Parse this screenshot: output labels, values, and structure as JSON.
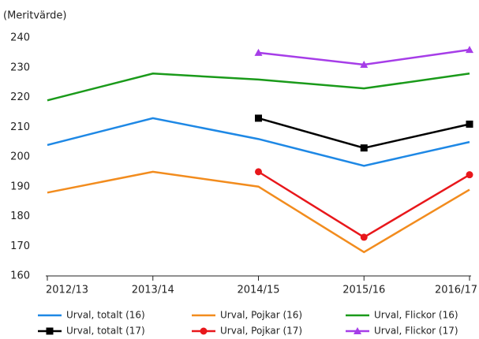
{
  "chart_data": {
    "type": "line",
    "y_label": "(Meritvärde)",
    "categories": [
      "2012/13",
      "2013/14",
      "2014/15",
      "2015/16",
      "2016/17"
    ],
    "ylim": [
      160,
      240
    ],
    "yticks": [
      160,
      170,
      180,
      190,
      200,
      210,
      220,
      230,
      240
    ],
    "grid": false,
    "series": [
      {
        "name": "Urval, totalt (16)",
        "color": "#1e88e5",
        "values": [
          204,
          213,
          206,
          197,
          205
        ]
      },
      {
        "name": "Urval, Pojkar (16)",
        "color": "#f28c1e",
        "values": [
          188,
          195,
          190,
          168,
          189
        ]
      },
      {
        "name": "Urval, Flickor (16)",
        "color": "#1a9a1a",
        "values": [
          219,
          228,
          226,
          223,
          228
        ]
      },
      {
        "name": "Urval, totalt (17)",
        "color": "#000000",
        "marker": "square",
        "values": [
          null,
          null,
          213,
          203,
          211
        ]
      },
      {
        "name": "Urval, Pojkar (17)",
        "color": "#e8171b",
        "marker": "circle",
        "values": [
          null,
          null,
          195,
          173,
          194
        ]
      },
      {
        "name": "Urval, Flickor (17)",
        "color": "#a63de8",
        "marker": "triangle",
        "values": [
          null,
          null,
          235,
          231,
          236
        ]
      }
    ]
  }
}
